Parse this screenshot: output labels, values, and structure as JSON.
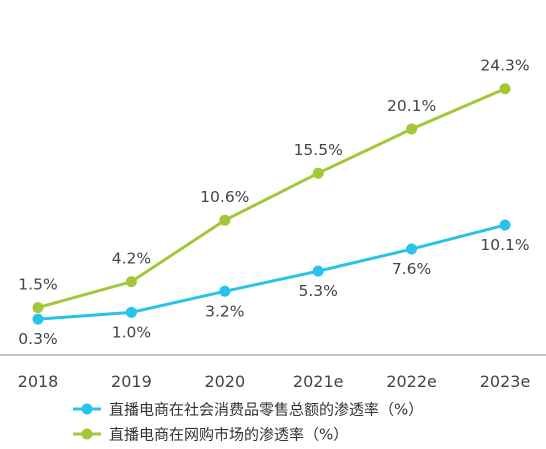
{
  "chart_data": {
    "type": "line",
    "categories": [
      "2018",
      "2019",
      "2020",
      "2021e",
      "2022e",
      "2023e"
    ],
    "ylim": [
      0,
      25
    ],
    "grid": false,
    "legend_position": "bottom-left",
    "series": [
      {
        "name": "直播电商在社会消费品零售总额的渗透率（%）",
        "color": "#29c2ea",
        "values": [
          0.3,
          1.0,
          3.2,
          5.3,
          7.6,
          10.1
        ],
        "labels": [
          "0.3%",
          "1.0%",
          "3.2%",
          "5.3%",
          "7.6%",
          "10.1%"
        ],
        "label_position": "below"
      },
      {
        "name": "直播电商在网购市场的渗透率（%）",
        "color": "#a2c838",
        "values": [
          1.5,
          4.2,
          10.6,
          15.5,
          20.1,
          24.3
        ],
        "labels": [
          "1.5%",
          "4.2%",
          "10.6%",
          "15.5%",
          "20.1%",
          "24.3%"
        ],
        "label_position": "above"
      }
    ]
  }
}
